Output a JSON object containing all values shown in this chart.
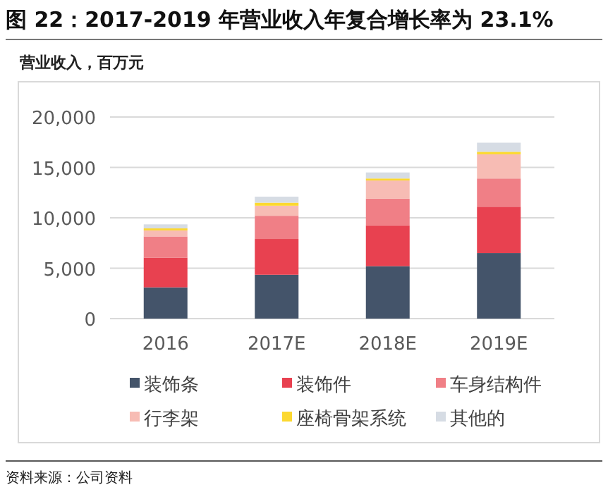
{
  "chart_data": {
    "type": "bar",
    "stacked": true,
    "title": "图 22：2017-2019 年营业收入年复合增长率为 23.1%",
    "ylabel": "营业收入，百万元",
    "categories": [
      "2016",
      "2017E",
      "2018E",
      "2019E"
    ],
    "series": [
      {
        "name": "装饰条",
        "color": "#44546a",
        "values": [
          3100,
          4350,
          5200,
          6500
        ]
      },
      {
        "name": "装饰件",
        "color": "#e84150",
        "values": [
          2950,
          3550,
          4050,
          4600
        ]
      },
      {
        "name": "车身结构件",
        "color": "#f07f86",
        "values": [
          2100,
          2300,
          2650,
          2800
        ]
      },
      {
        "name": "行李架",
        "color": "#f7bcb4",
        "values": [
          600,
          1000,
          1800,
          2400
        ]
      },
      {
        "name": "座椅骨架系统",
        "color": "#fcd830",
        "values": [
          200,
          300,
          200,
          250
        ]
      },
      {
        "name": "其他的",
        "color": "#d6dce4",
        "values": [
          400,
          600,
          600,
          900
        ]
      }
    ],
    "ylim": [
      0,
      20000
    ],
    "yticks": [
      {
        "value": 0,
        "label": "0"
      },
      {
        "value": 5000,
        "label": "5,000"
      },
      {
        "value": 10000,
        "label": "10,000"
      },
      {
        "value": 15000,
        "label": "15,000"
      },
      {
        "value": 20000,
        "label": "20,000"
      }
    ],
    "grid": "y",
    "legend": "bottom",
    "annotations": [
      "资料来源：公司资料"
    ]
  }
}
